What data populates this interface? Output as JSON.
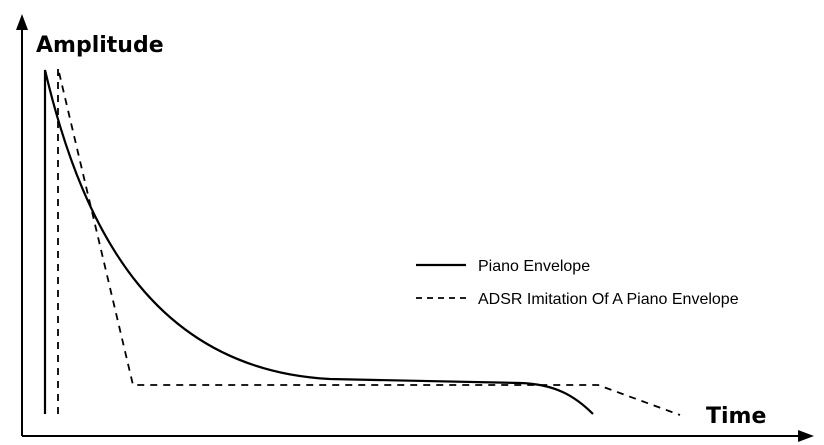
{
  "diagram": {
    "y_axis_label": "Amplitude",
    "x_axis_label": "Time",
    "legend": {
      "piano": "Piano Envelope",
      "adsr": "ADSR Imitation Of A Piano Envelope"
    },
    "colors": {
      "line": "#000000",
      "background": "#ffffff"
    }
  }
}
